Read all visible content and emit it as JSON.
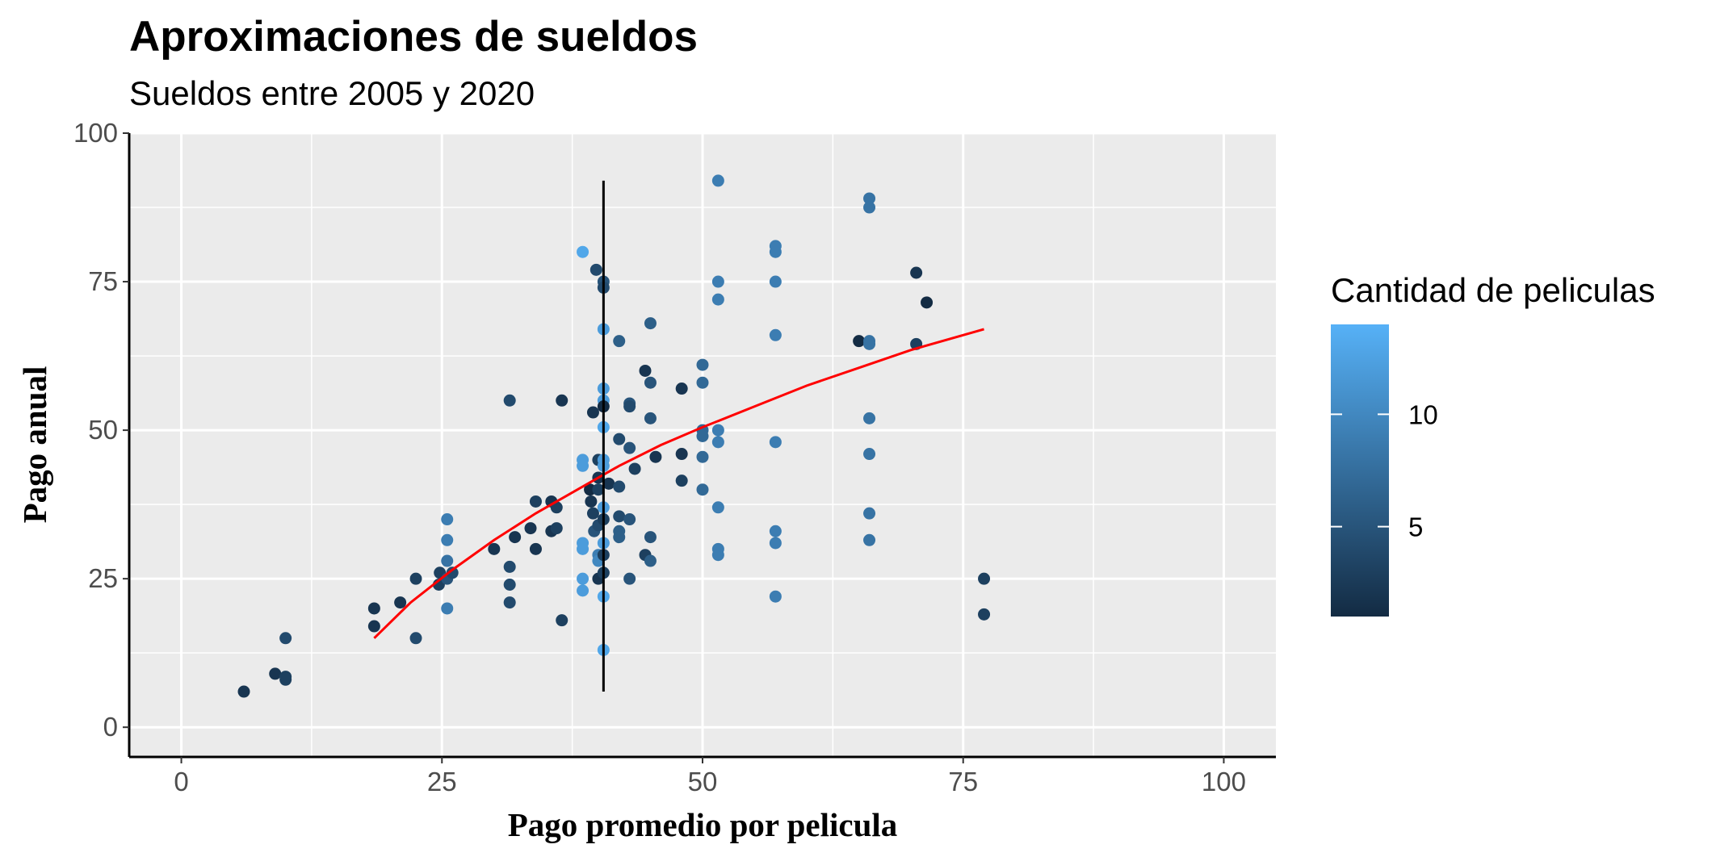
{
  "chart_data": {
    "type": "scatter",
    "title": "Aproximaciones de sueldos",
    "subtitle": "Sueldos entre 2005 y 2020",
    "xlabel": "Pago promedio por pelicula",
    "ylabel": "Pago anual",
    "xlim": [
      -5,
      105
    ],
    "ylim": [
      -5,
      100
    ],
    "x_ticks": [
      0,
      25,
      50,
      75,
      100
    ],
    "y_ticks": [
      0,
      25,
      50,
      75,
      100
    ],
    "grid": true,
    "background": "#ebebeb",
    "legend": {
      "title": "Cantidad de peliculas",
      "position": "right",
      "labels": [
        5,
        10
      ],
      "color_low": "#132b43",
      "color_high": "#56b1f7",
      "value_range": [
        1,
        14
      ]
    },
    "points": [
      {
        "x": 6,
        "y": 6,
        "c": 2
      },
      {
        "x": 9,
        "y": 9,
        "c": 2
      },
      {
        "x": 10,
        "y": 8,
        "c": 3
      },
      {
        "x": 10,
        "y": 8.5,
        "c": 3
      },
      {
        "x": 10,
        "y": 15,
        "c": 4
      },
      {
        "x": 18.5,
        "y": 20,
        "c": 2
      },
      {
        "x": 18.5,
        "y": 17,
        "c": 2
      },
      {
        "x": 21,
        "y": 21,
        "c": 2
      },
      {
        "x": 22.5,
        "y": 25,
        "c": 3
      },
      {
        "x": 22.5,
        "y": 15,
        "c": 4
      },
      {
        "x": 24.7,
        "y": 24,
        "c": 3
      },
      {
        "x": 24.8,
        "y": 26,
        "c": 3
      },
      {
        "x": 25.5,
        "y": 35,
        "c": 9
      },
      {
        "x": 25.5,
        "y": 31.5,
        "c": 9
      },
      {
        "x": 25.5,
        "y": 28,
        "c": 8
      },
      {
        "x": 25.5,
        "y": 25,
        "c": 5
      },
      {
        "x": 25.5,
        "y": 20,
        "c": 9
      },
      {
        "x": 26,
        "y": 26,
        "c": 4
      },
      {
        "x": 30,
        "y": 30,
        "c": 2
      },
      {
        "x": 31.5,
        "y": 55,
        "c": 4
      },
      {
        "x": 31.5,
        "y": 27,
        "c": 4
      },
      {
        "x": 31.5,
        "y": 24,
        "c": 4
      },
      {
        "x": 31.5,
        "y": 21,
        "c": 4
      },
      {
        "x": 32,
        "y": 32,
        "c": 2
      },
      {
        "x": 33.5,
        "y": 33.5,
        "c": 2
      },
      {
        "x": 34,
        "y": 30,
        "c": 2
      },
      {
        "x": 34,
        "y": 38,
        "c": 3
      },
      {
        "x": 35.5,
        "y": 33,
        "c": 2
      },
      {
        "x": 35.5,
        "y": 38,
        "c": 2
      },
      {
        "x": 36,
        "y": 37,
        "c": 3
      },
      {
        "x": 36,
        "y": 33.5,
        "c": 3
      },
      {
        "x": 36.5,
        "y": 55,
        "c": 2
      },
      {
        "x": 36.5,
        "y": 18,
        "c": 3
      },
      {
        "x": 38.5,
        "y": 80,
        "c": 13
      },
      {
        "x": 38.5,
        "y": 45,
        "c": 12
      },
      {
        "x": 38.5,
        "y": 44,
        "c": 12
      },
      {
        "x": 38.5,
        "y": 31,
        "c": 12
      },
      {
        "x": 38.5,
        "y": 30,
        "c": 12
      },
      {
        "x": 38.5,
        "y": 25,
        "c": 12
      },
      {
        "x": 38.5,
        "y": 23,
        "c": 12
      },
      {
        "x": 39.2,
        "y": 40,
        "c": 1
      },
      {
        "x": 39.3,
        "y": 38,
        "c": 2
      },
      {
        "x": 39.5,
        "y": 36,
        "c": 3
      },
      {
        "x": 39.6,
        "y": 33,
        "c": 5
      },
      {
        "x": 39.5,
        "y": 53,
        "c": 2
      },
      {
        "x": 39.8,
        "y": 77,
        "c": 4
      },
      {
        "x": 40,
        "y": 45,
        "c": 3
      },
      {
        "x": 40,
        "y": 42,
        "c": 2
      },
      {
        "x": 40,
        "y": 40,
        "c": 3
      },
      {
        "x": 40,
        "y": 34,
        "c": 4
      },
      {
        "x": 40,
        "y": 29,
        "c": 9
      },
      {
        "x": 40,
        "y": 28,
        "c": 10
      },
      {
        "x": 40,
        "y": 25,
        "c": 2
      },
      {
        "x": 40.5,
        "y": 75,
        "c": 5
      },
      {
        "x": 40.5,
        "y": 74,
        "c": 4
      },
      {
        "x": 40.5,
        "y": 67,
        "c": 12
      },
      {
        "x": 40.5,
        "y": 57,
        "c": 12
      },
      {
        "x": 40.5,
        "y": 55,
        "c": 12
      },
      {
        "x": 40.5,
        "y": 54,
        "c": 1
      },
      {
        "x": 40.5,
        "y": 50.5,
        "c": 13
      },
      {
        "x": 40.5,
        "y": 45,
        "c": 12
      },
      {
        "x": 40.5,
        "y": 44,
        "c": 12
      },
      {
        "x": 40.5,
        "y": 37,
        "c": 12
      },
      {
        "x": 40.5,
        "y": 35,
        "c": 3
      },
      {
        "x": 40.5,
        "y": 31,
        "c": 12
      },
      {
        "x": 40.5,
        "y": 29,
        "c": 3
      },
      {
        "x": 40.5,
        "y": 26,
        "c": 3
      },
      {
        "x": 40.5,
        "y": 22,
        "c": 13
      },
      {
        "x": 40.5,
        "y": 13,
        "c": 13
      },
      {
        "x": 41,
        "y": 41,
        "c": 2
      },
      {
        "x": 42,
        "y": 65,
        "c": 6
      },
      {
        "x": 42,
        "y": 48.5,
        "c": 4
      },
      {
        "x": 42,
        "y": 40.5,
        "c": 4
      },
      {
        "x": 42,
        "y": 35.5,
        "c": 4
      },
      {
        "x": 42,
        "y": 33,
        "c": 6
      },
      {
        "x": 42,
        "y": 32,
        "c": 6
      },
      {
        "x": 43,
        "y": 54.5,
        "c": 5
      },
      {
        "x": 43,
        "y": 54,
        "c": 4
      },
      {
        "x": 43,
        "y": 47,
        "c": 5
      },
      {
        "x": 43,
        "y": 35,
        "c": 5
      },
      {
        "x": 43,
        "y": 25,
        "c": 5
      },
      {
        "x": 43.5,
        "y": 43.5,
        "c": 3
      },
      {
        "x": 44.5,
        "y": 60,
        "c": 2
      },
      {
        "x": 44.5,
        "y": 29,
        "c": 3
      },
      {
        "x": 45,
        "y": 68,
        "c": 6
      },
      {
        "x": 45,
        "y": 58,
        "c": 5
      },
      {
        "x": 45,
        "y": 52,
        "c": 5
      },
      {
        "x": 45,
        "y": 32,
        "c": 5
      },
      {
        "x": 45,
        "y": 28,
        "c": 6
      },
      {
        "x": 45.5,
        "y": 45.5,
        "c": 2
      },
      {
        "x": 48,
        "y": 57,
        "c": 2
      },
      {
        "x": 48,
        "y": 46,
        "c": 2
      },
      {
        "x": 48,
        "y": 41.5,
        "c": 3
      },
      {
        "x": 50,
        "y": 61,
        "c": 7
      },
      {
        "x": 50,
        "y": 58,
        "c": 7
      },
      {
        "x": 50,
        "y": 50,
        "c": 7
      },
      {
        "x": 50,
        "y": 49,
        "c": 7
      },
      {
        "x": 50,
        "y": 45.5,
        "c": 7
      },
      {
        "x": 50,
        "y": 40,
        "c": 7
      },
      {
        "x": 51.5,
        "y": 92,
        "c": 9
      },
      {
        "x": 51.5,
        "y": 75,
        "c": 9
      },
      {
        "x": 51.5,
        "y": 72,
        "c": 9
      },
      {
        "x": 51.5,
        "y": 50,
        "c": 9
      },
      {
        "x": 51.5,
        "y": 48,
        "c": 9
      },
      {
        "x": 51.5,
        "y": 37,
        "c": 9
      },
      {
        "x": 51.5,
        "y": 30,
        "c": 9
      },
      {
        "x": 51.5,
        "y": 29,
        "c": 9
      },
      {
        "x": 57,
        "y": 81,
        "c": 9
      },
      {
        "x": 57,
        "y": 80,
        "c": 9
      },
      {
        "x": 57,
        "y": 75,
        "c": 9
      },
      {
        "x": 57,
        "y": 66,
        "c": 9
      },
      {
        "x": 57,
        "y": 48,
        "c": 9
      },
      {
        "x": 57,
        "y": 33,
        "c": 9
      },
      {
        "x": 57,
        "y": 31,
        "c": 9
      },
      {
        "x": 57,
        "y": 22,
        "c": 9
      },
      {
        "x": 65,
        "y": 65,
        "c": 1
      },
      {
        "x": 66,
        "y": 89,
        "c": 8
      },
      {
        "x": 66,
        "y": 87.5,
        "c": 8
      },
      {
        "x": 66,
        "y": 65,
        "c": 8
      },
      {
        "x": 66,
        "y": 64.5,
        "c": 8
      },
      {
        "x": 66,
        "y": 52,
        "c": 8
      },
      {
        "x": 66,
        "y": 46,
        "c": 8
      },
      {
        "x": 66,
        "y": 36,
        "c": 8
      },
      {
        "x": 66,
        "y": 31.5,
        "c": 8
      },
      {
        "x": 70.5,
        "y": 76.5,
        "c": 2
      },
      {
        "x": 70.5,
        "y": 64.5,
        "c": 3
      },
      {
        "x": 71.5,
        "y": 71.5,
        "c": 1
      },
      {
        "x": 77,
        "y": 25,
        "c": 3
      },
      {
        "x": 77,
        "y": 19,
        "c": 3
      }
    ],
    "fit_line": {
      "color": "#ff0000",
      "x": [
        18.5,
        22,
        26,
        30,
        34,
        38,
        42,
        46,
        50,
        55,
        60,
        65,
        70,
        77
      ],
      "y": [
        15,
        21,
        26.5,
        31.5,
        36,
        40,
        44,
        47.5,
        50.5,
        54,
        57.5,
        60.5,
        63.5,
        67
      ]
    },
    "vline": {
      "x": 40.5,
      "y_from": 6,
      "y_to": 92,
      "color": "#000000"
    }
  }
}
